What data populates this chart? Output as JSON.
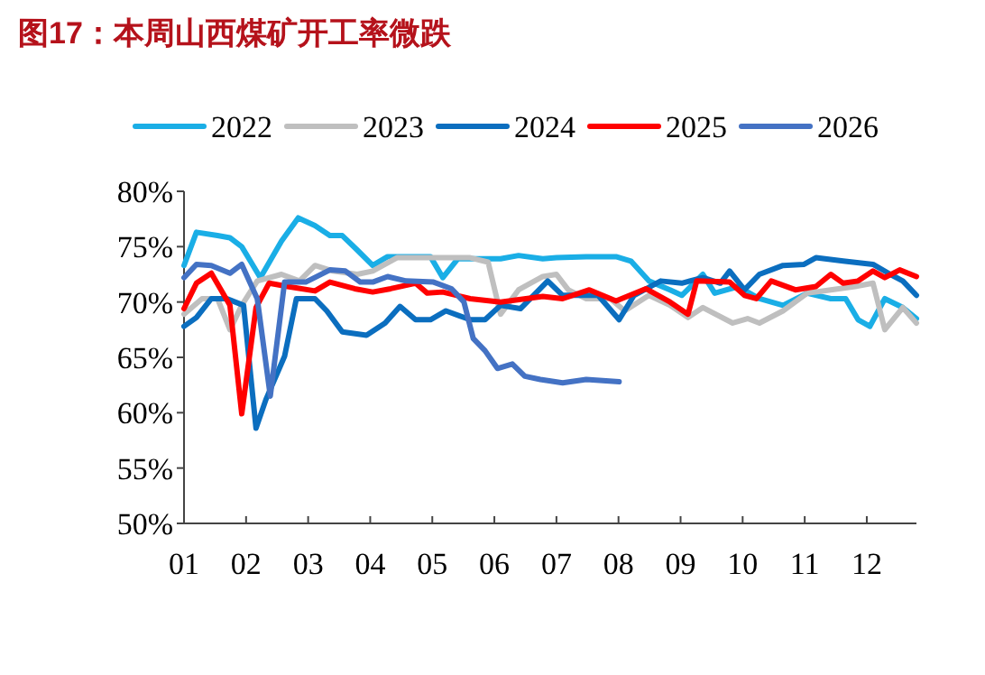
{
  "chart_data": {
    "type": "line",
    "title": "图17：本周山西煤矿开工率微跌",
    "legend": "top",
    "xlim": [
      1,
      12.8
    ],
    "ylim": [
      50,
      80
    ],
    "xticks": [
      {
        "value": 1,
        "label": "01"
      },
      {
        "value": 2,
        "label": "02"
      },
      {
        "value": 3,
        "label": "03"
      },
      {
        "value": 4,
        "label": "04"
      },
      {
        "value": 5,
        "label": "05"
      },
      {
        "value": 6,
        "label": "06"
      },
      {
        "value": 7,
        "label": "07"
      },
      {
        "value": 8,
        "label": "08"
      },
      {
        "value": 9,
        "label": "09"
      },
      {
        "value": 10,
        "label": "10"
      },
      {
        "value": 11,
        "label": "11"
      },
      {
        "value": 12,
        "label": "12"
      }
    ],
    "yticks": [
      {
        "value": 50,
        "label": "50%"
      },
      {
        "value": 55,
        "label": "55%"
      },
      {
        "value": 60,
        "label": "60%"
      },
      {
        "value": 65,
        "label": "65%"
      },
      {
        "value": 70,
        "label": "70%"
      },
      {
        "value": 75,
        "label": "75%"
      },
      {
        "value": 80,
        "label": "80%"
      }
    ],
    "series": [
      {
        "name": "2022",
        "color": "#1aaee6",
        "x": [
          1,
          1.2,
          1.54,
          1.74,
          1.93,
          2.08,
          2.23,
          2.57,
          2.84,
          3.11,
          3.35,
          3.55,
          3.79,
          4.04,
          4.28,
          4.73,
          4.97,
          5.17,
          5.41,
          5.8,
          6.1,
          6.39,
          6.78,
          7,
          7.48,
          7.96,
          8.2,
          8.49,
          8.83,
          9.02,
          9.36,
          9.55,
          9.93,
          10.27,
          10.65,
          11.04,
          11.42,
          11.66,
          11.86,
          12.05,
          12.29,
          12.58,
          12.8
        ],
        "values": [
          73.3,
          76.3,
          76,
          75.8,
          75,
          73.6,
          72.2,
          75.5,
          77.6,
          76.9,
          76,
          76,
          74.7,
          73.3,
          74.1,
          74.1,
          74.1,
          72.2,
          73.9,
          73.9,
          73.9,
          74.2,
          73.9,
          74,
          74.1,
          74.1,
          73.7,
          71.9,
          71.1,
          70.6,
          72.5,
          70.8,
          71.4,
          70.3,
          69.7,
          70.8,
          70.3,
          70.3,
          68.4,
          67.8,
          70.3,
          69.5,
          68.5
        ]
      },
      {
        "name": "2023",
        "color": "#bfbfbf",
        "x": [
          1,
          1.29,
          1.54,
          1.74,
          1.93,
          2.18,
          2.57,
          2.86,
          3.11,
          3.4,
          3.79,
          4.04,
          4.43,
          5.02,
          5.61,
          5.9,
          6.1,
          6.39,
          6.78,
          7,
          7.19,
          7.48,
          7.87,
          8.1,
          8.49,
          8.83,
          9.12,
          9.36,
          9.84,
          10.08,
          10.27,
          10.65,
          11.04,
          11.42,
          11.81,
          12.1,
          12.29,
          12.58,
          12.8
        ],
        "values": [
          68.9,
          70.3,
          70.3,
          67.5,
          69.7,
          71.9,
          72.5,
          71.9,
          73.3,
          72.8,
          72.5,
          72.8,
          74,
          74,
          74,
          73.6,
          68.9,
          71.1,
          72.3,
          72.5,
          71.1,
          70.3,
          70.3,
          69.2,
          70.6,
          69.7,
          68.6,
          69.5,
          68.1,
          68.5,
          68.1,
          69.2,
          70.8,
          71.1,
          71.4,
          71.7,
          67.5,
          69.5,
          68.1
        ]
      },
      {
        "name": "2024",
        "color": "#0b6ebf",
        "x": [
          1,
          1.2,
          1.44,
          1.69,
          1.96,
          2.16,
          2.32,
          2.62,
          2.81,
          3.11,
          3.3,
          3.55,
          3.94,
          4.24,
          4.48,
          4.73,
          4.97,
          5.22,
          5.61,
          5.85,
          6.1,
          6.42,
          6.86,
          7.1,
          7.67,
          8.01,
          8.25,
          8.68,
          9.02,
          9.36,
          9.64,
          9.79,
          10.03,
          10.27,
          10.65,
          10.99,
          11.18,
          11.62,
          12.1,
          12.38,
          12.58,
          12.8
        ],
        "values": [
          67.8,
          68.6,
          70.3,
          70.3,
          69.7,
          58.6,
          61.2,
          65.1,
          70.3,
          70.3,
          69.2,
          67.3,
          67,
          68.1,
          69.6,
          68.4,
          68.4,
          69.2,
          68.4,
          68.4,
          69.7,
          69.4,
          71.9,
          70.6,
          70.6,
          68.4,
          70.6,
          71.9,
          71.7,
          72.2,
          71.7,
          72.8,
          71.1,
          72.5,
          73.3,
          73.4,
          74,
          73.7,
          73.4,
          72.5,
          71.9,
          70.6
        ]
      },
      {
        "name": "2025",
        "color": "#ff0000",
        "x": [
          1,
          1.2,
          1.44,
          1.74,
          1.93,
          2.16,
          2.37,
          2.67,
          3.11,
          3.35,
          3.75,
          4.04,
          4.33,
          4.73,
          4.92,
          5.17,
          5.61,
          6.1,
          6.78,
          7.1,
          7.53,
          7.96,
          8.44,
          8.83,
          9.12,
          9.26,
          9.79,
          10.03,
          10.22,
          10.46,
          10.85,
          11.18,
          11.42,
          11.62,
          11.86,
          12.1,
          12.29,
          12.53,
          12.8
        ],
        "values": [
          69.4,
          71.7,
          72.6,
          69.7,
          59.9,
          69.5,
          71.7,
          71.4,
          71,
          71.8,
          71.2,
          70.9,
          71.2,
          71.7,
          70.8,
          70.9,
          70.3,
          70,
          70.5,
          70.3,
          71.1,
          70.1,
          71.2,
          70,
          68.9,
          71.9,
          71.8,
          70.6,
          70.3,
          71.9,
          71.1,
          71.4,
          72.5,
          71.7,
          71.9,
          72.8,
          72.2,
          72.9,
          72.3
        ]
      },
      {
        "name": "2026",
        "color": "#4472c4",
        "x": [
          1,
          1.2,
          1.44,
          1.74,
          1.93,
          2.18,
          2.39,
          2.62,
          2.96,
          3.35,
          3.6,
          3.84,
          4.04,
          4.28,
          4.58,
          5.02,
          5.31,
          5.51,
          5.66,
          5.85,
          6.05,
          6.29,
          6.49,
          6.74,
          7.1,
          7.48,
          8.01
        ],
        "values": [
          72.2,
          73.4,
          73.3,
          72.6,
          73.4,
          70.3,
          61.5,
          71.8,
          71.8,
          72.9,
          72.8,
          71.8,
          71.8,
          72.3,
          71.9,
          71.8,
          71.2,
          70,
          66.7,
          65.6,
          64,
          64.4,
          63.3,
          63,
          62.7,
          63,
          62.8
        ]
      }
    ]
  }
}
